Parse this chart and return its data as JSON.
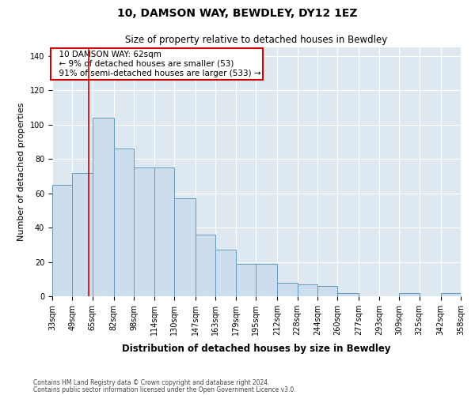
{
  "title": "10, DAMSON WAY, BEWDLEY, DY12 1EZ",
  "subtitle": "Size of property relative to detached houses in Bewdley",
  "xlabel": "Distribution of detached houses by size in Bewdley",
  "ylabel": "Number of detached properties",
  "footer_line1": "Contains HM Land Registry data © Crown copyright and database right 2024.",
  "footer_line2": "Contains public sector information licensed under the Open Government Licence v3.0.",
  "annotation_line1": "10 DAMSON WAY: 62sqm",
  "annotation_line2": "← 9% of detached houses are smaller (53)",
  "annotation_line3": "91% of semi-detached houses are larger (533) →",
  "property_size_sqm": 62,
  "bar_edges": [
    33,
    49,
    65,
    82,
    98,
    114,
    130,
    147,
    163,
    179,
    195,
    212,
    228,
    244,
    260,
    277,
    293,
    309,
    325,
    342,
    358
  ],
  "bar_heights": [
    65,
    72,
    104,
    86,
    75,
    75,
    57,
    36,
    27,
    19,
    19,
    8,
    7,
    6,
    2,
    0,
    0,
    2,
    0,
    2
  ],
  "bar_color": "#ccdded",
  "bar_edge_color": "#6699bb",
  "marker_line_color": "#cc0000",
  "annotation_box_color": "#cc0000",
  "background_color": "#dde8f0",
  "ylim": [
    0,
    145
  ],
  "yticks": [
    0,
    20,
    40,
    60,
    80,
    100,
    120,
    140
  ],
  "title_fontsize": 10,
  "subtitle_fontsize": 8.5,
  "ylabel_fontsize": 8,
  "xlabel_fontsize": 8.5,
  "tick_fontsize": 7,
  "annotation_fontsize": 7.5,
  "footer_fontsize": 5.5
}
